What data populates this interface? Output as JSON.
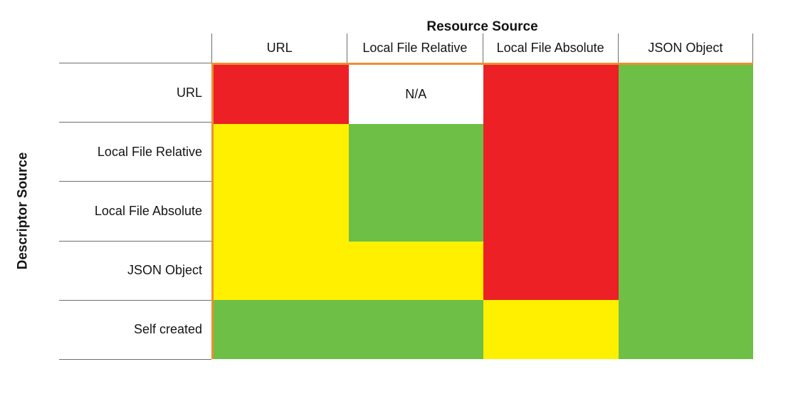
{
  "chart_data": {
    "type": "heatmap",
    "title": "Resource Source",
    "row_axis_label": "Descriptor Source",
    "columns": [
      "URL",
      "Local File Relative",
      "Local File Absolute",
      "JSON Object"
    ],
    "rows": [
      "URL",
      "Local File Relative",
      "Local File Absolute",
      "JSON Object",
      "Self created"
    ],
    "cells": [
      [
        "red",
        "na",
        "red",
        "green"
      ],
      [
        "yellow",
        "green",
        "red",
        "green"
      ],
      [
        "yellow",
        "green",
        "red",
        "green"
      ],
      [
        "yellow",
        "yellow",
        "red",
        "green"
      ],
      [
        "green",
        "green",
        "yellow",
        "green"
      ]
    ],
    "na_label": "N/A",
    "palette": {
      "red": "#ED2025",
      "yellow": "#FFF000",
      "green": "#6DBF45",
      "na": "#FFFFFF"
    },
    "accent_border_color": "#EE8F2E",
    "gridline_color": "#6E6E6E",
    "text_color": "#141414",
    "legend": "none",
    "grid": "off"
  }
}
